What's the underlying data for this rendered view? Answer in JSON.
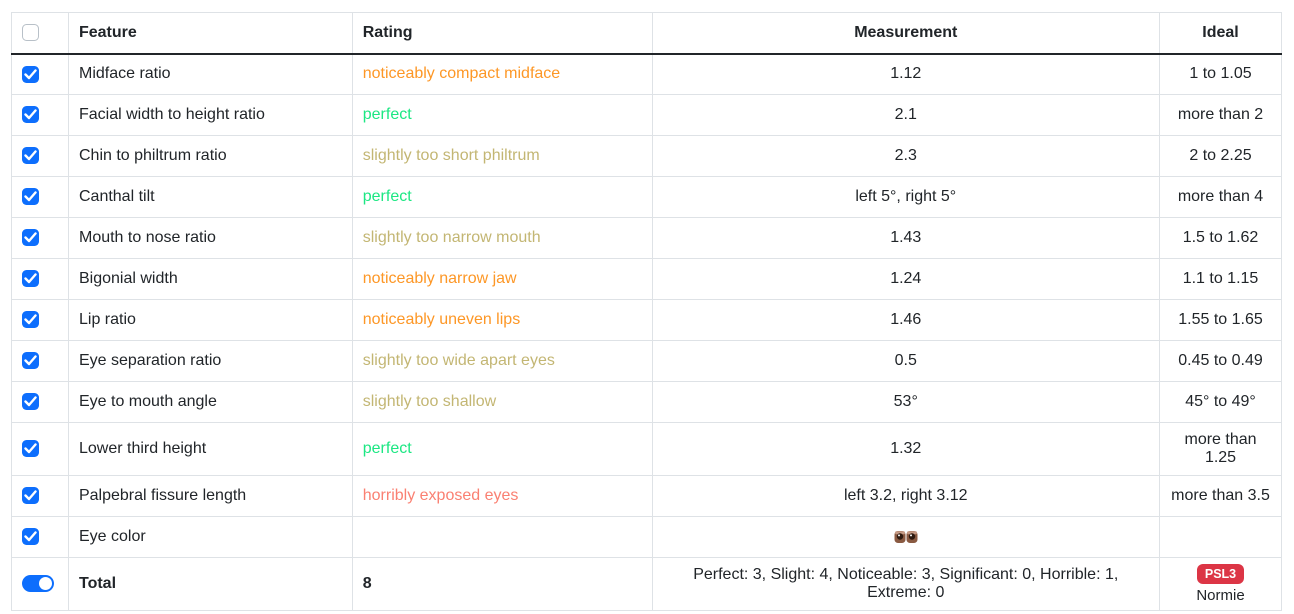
{
  "colors": {
    "perfect": "#1ce783",
    "slight": "#c3b673",
    "noticeable": "#fd9726",
    "horrible": "#fa8072",
    "accent_blue": "#0d6efd",
    "badge_red": "#dc3545",
    "text": "#212529",
    "border": "#dee2e6"
  },
  "table": {
    "headers": {
      "feature": "Feature",
      "rating": "Rating",
      "measurement": "Measurement",
      "ideal": "Ideal"
    },
    "rows": [
      {
        "feature": "Midface ratio",
        "rating": "noticeably compact midface",
        "rating_level": "noticeable",
        "measurement": "1.12",
        "ideal": "1 to 1.05",
        "checked": true
      },
      {
        "feature": "Facial width to height ratio",
        "rating": "perfect",
        "rating_level": "perfect",
        "measurement": "2.1",
        "ideal": "more than 2",
        "checked": true
      },
      {
        "feature": "Chin to philtrum ratio",
        "rating": "slightly too short philtrum",
        "rating_level": "slight",
        "measurement": "2.3",
        "ideal": "2 to 2.25",
        "checked": true
      },
      {
        "feature": "Canthal tilt",
        "rating": "perfect",
        "rating_level": "perfect",
        "measurement": "left 5°, right 5°",
        "ideal": "more than 4",
        "checked": true
      },
      {
        "feature": "Mouth to nose ratio",
        "rating": "slightly too narrow mouth",
        "rating_level": "slight",
        "measurement": "1.43",
        "ideal": "1.5 to 1.62",
        "checked": true
      },
      {
        "feature": "Bigonial width",
        "rating": "noticeably narrow jaw",
        "rating_level": "noticeable",
        "measurement": "1.24",
        "ideal": "1.1 to 1.15",
        "checked": true
      },
      {
        "feature": "Lip ratio",
        "rating": "noticeably uneven lips",
        "rating_level": "noticeable",
        "measurement": "1.46",
        "ideal": "1.55 to 1.65",
        "checked": true
      },
      {
        "feature": "Eye separation ratio",
        "rating": "slightly too wide apart eyes",
        "rating_level": "slight",
        "measurement": "0.5",
        "ideal": "0.45 to 0.49",
        "checked": true
      },
      {
        "feature": "Eye to mouth angle",
        "rating": "slightly too shallow",
        "rating_level": "slight",
        "measurement": "53°",
        "ideal": "45° to 49°",
        "checked": true
      },
      {
        "feature": "Lower third height",
        "rating": "perfect",
        "rating_level": "perfect",
        "measurement": "1.32",
        "ideal": "more than 1.25",
        "checked": true
      },
      {
        "feature": "Palpebral fissure length",
        "rating": "horribly exposed eyes",
        "rating_level": "horrible",
        "measurement": "left 3.2, right 3.12",
        "ideal": "more than 3.5",
        "checked": true
      },
      {
        "feature": "Eye color",
        "rating": "",
        "rating_level": "",
        "measurement": "",
        "measurement_icon": "brown-eyes-emoji",
        "ideal": "",
        "checked": true
      }
    ],
    "total": {
      "label": "Total",
      "score": "8",
      "summary": "Perfect: 3, Slight: 4, Noticeable: 3, Significant: 0, Horrible: 1, Extreme: 0",
      "badge": "PSL3",
      "badge_label": "Normie",
      "toggle_on": true
    }
  }
}
